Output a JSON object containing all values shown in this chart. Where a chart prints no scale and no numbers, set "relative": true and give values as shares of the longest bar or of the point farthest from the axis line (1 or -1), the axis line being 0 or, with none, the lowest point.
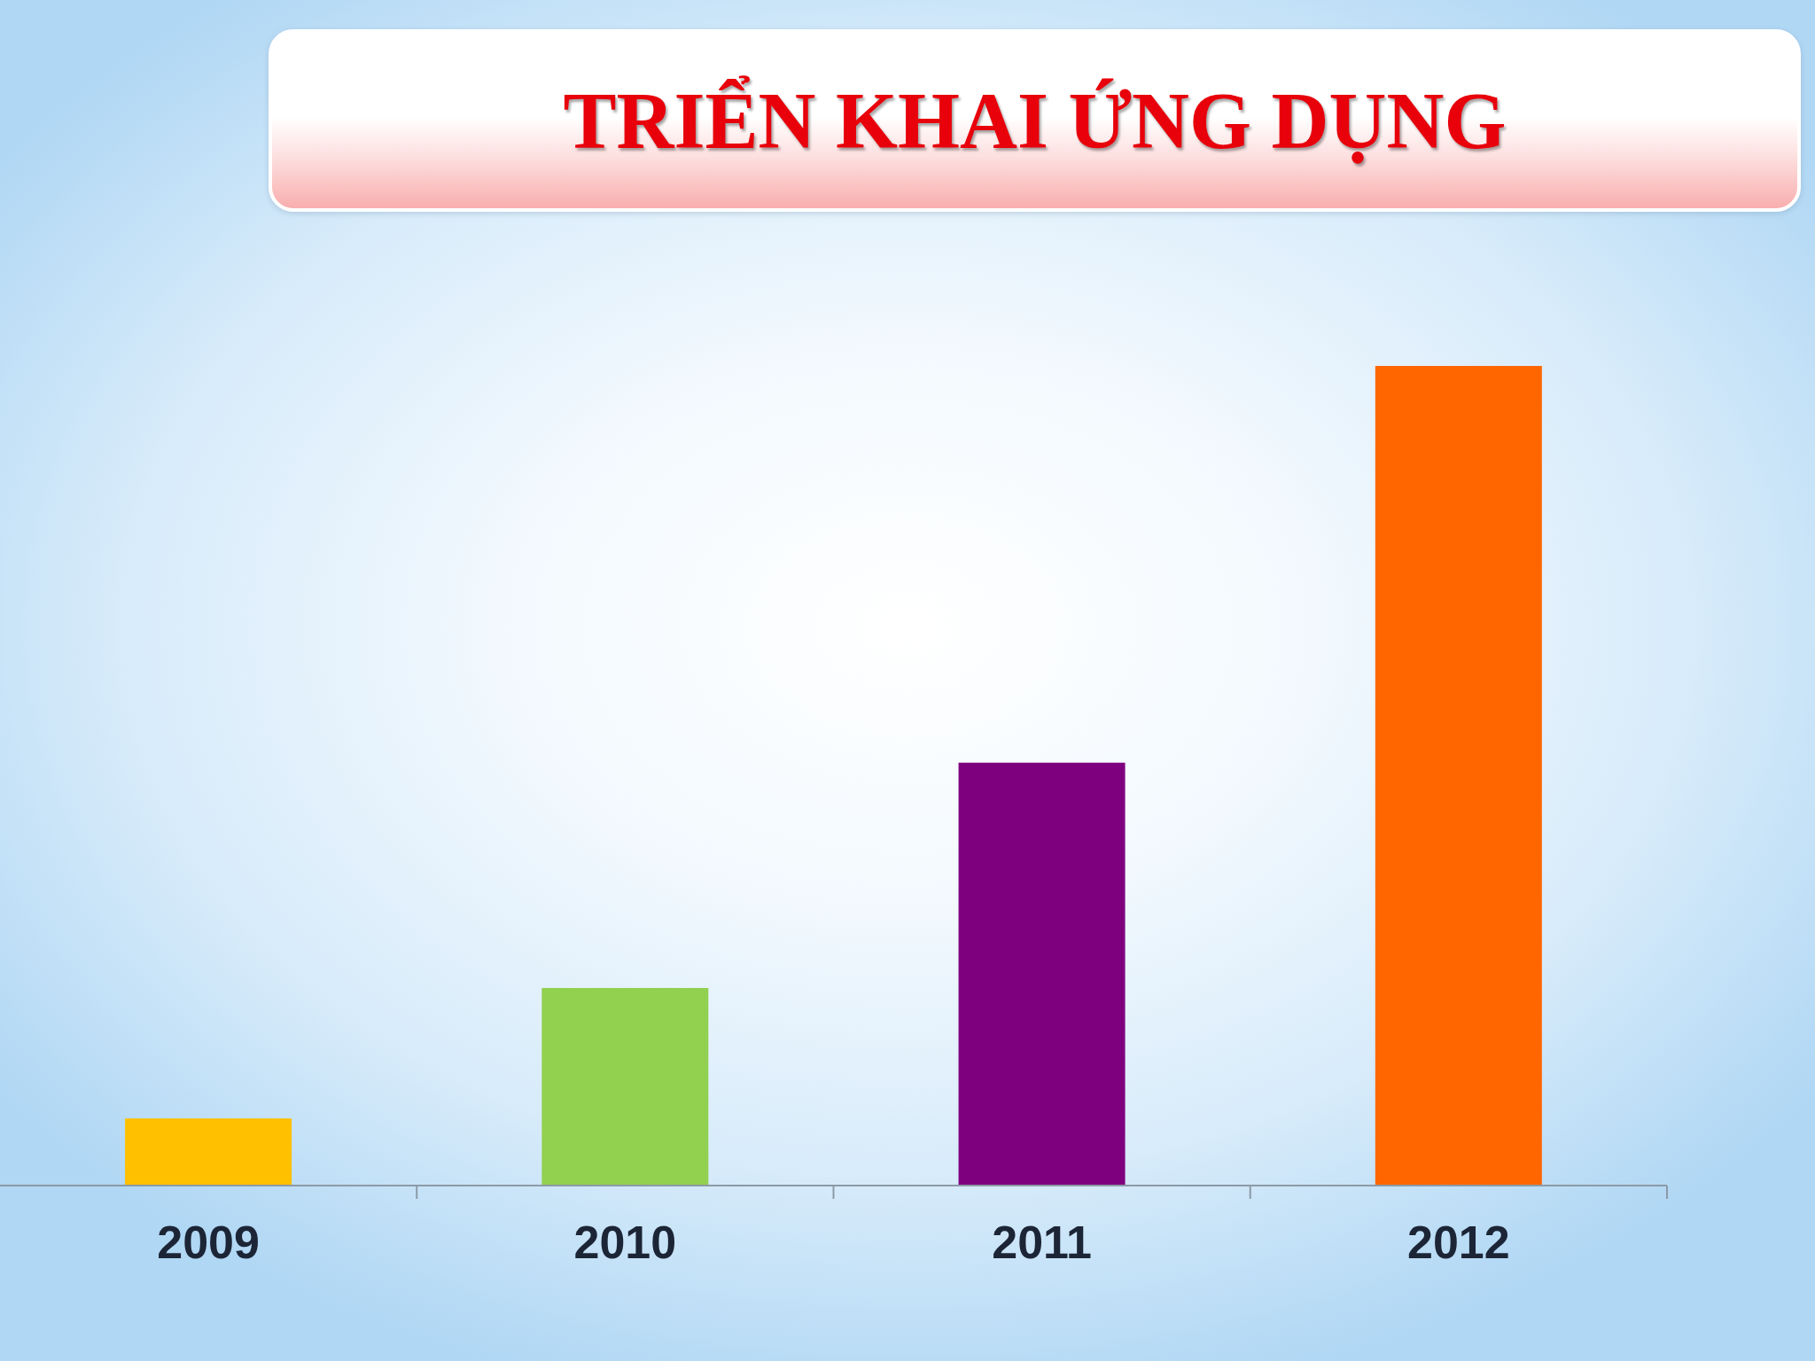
{
  "chart_data": {
    "type": "bar",
    "title": "TRIỂN KHAI ỨNG DỤNG",
    "categories": [
      "2009",
      "2010",
      "2011",
      "2012"
    ],
    "values": [
      0.082,
      0.241,
      0.516,
      1
    ],
    "colors": [
      "#ffc000",
      "#92d050",
      "#7f007f",
      "#ff6600"
    ],
    "relative": true
  }
}
